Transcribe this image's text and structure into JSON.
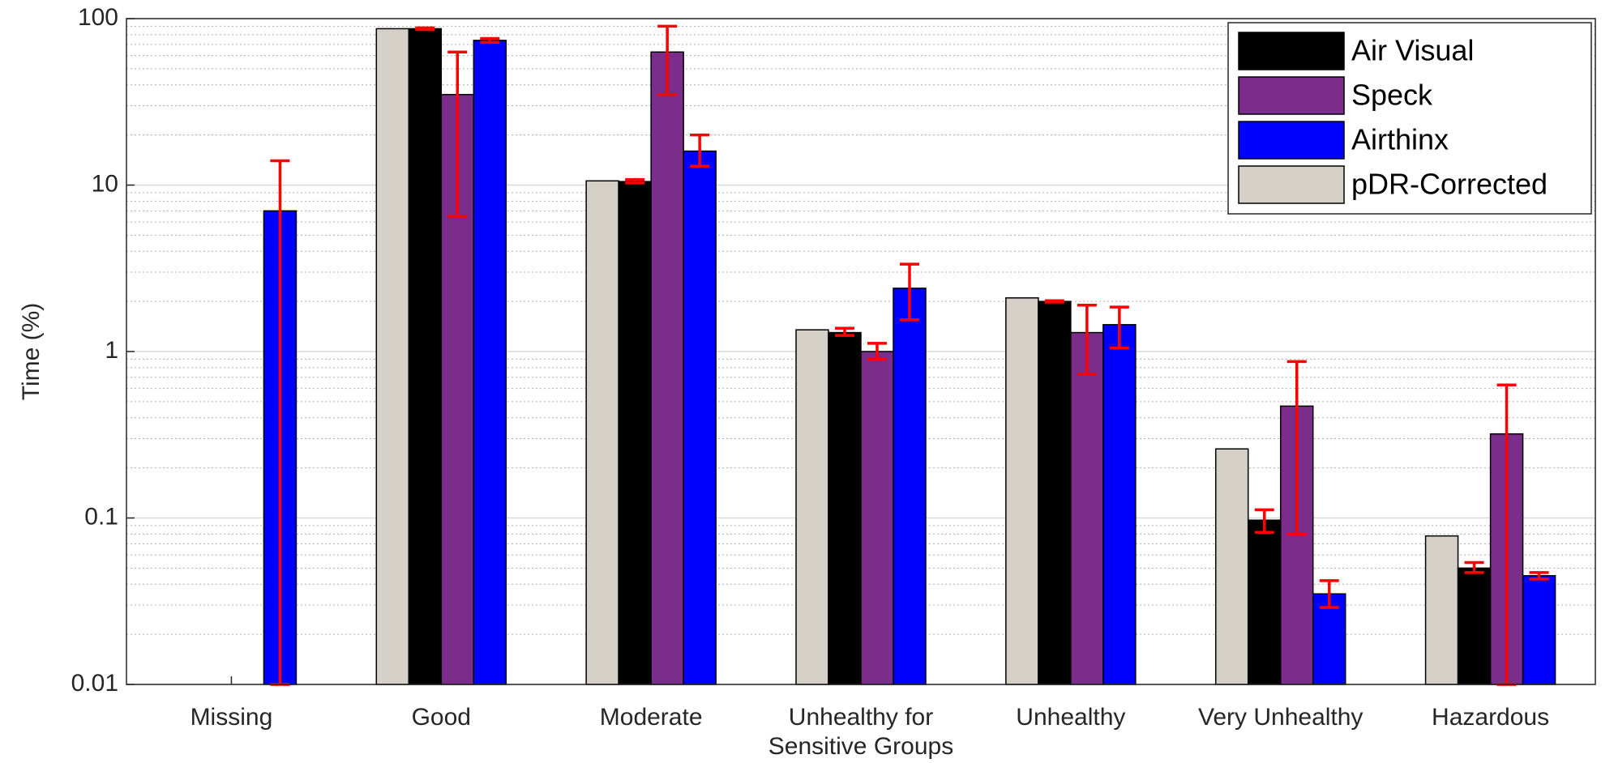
{
  "chart_data": {
    "type": "bar",
    "y_label": "Time (%)",
    "log_scale": true,
    "grid": true,
    "legend_position": "upper right",
    "categories": [
      "Missing",
      "Good",
      "Moderate",
      "Unhealthy for Sensitive Groups",
      "Unhealthy",
      "Very Unhealthy",
      "Hazardous"
    ],
    "ylim": [
      0.01,
      100
    ],
    "yticks": [
      0.01,
      0.1,
      1,
      10,
      100
    ],
    "error_color": "#ff0000",
    "series": [
      {
        "name": "pDR-Corrected",
        "color": "#d4d0c8",
        "values": [
          null,
          87,
          10.6,
          1.35,
          2.1,
          0.26,
          0.078
        ],
        "err_low": [
          null,
          null,
          null,
          null,
          null,
          null,
          null
        ],
        "err_high": [
          null,
          null,
          null,
          null,
          null,
          null,
          null
        ]
      },
      {
        "name": "Air Visual",
        "color": "#000000",
        "values": [
          null,
          87,
          10.5,
          1.3,
          2.0,
          0.097,
          0.05
        ],
        "err_low": [
          null,
          86,
          10.3,
          1.25,
          1.98,
          0.082,
          0.047
        ],
        "err_high": [
          null,
          88,
          10.8,
          1.38,
          2.02,
          0.112,
          0.054
        ]
      },
      {
        "name": "Speck",
        "color": "#7b2d8b",
        "values": [
          null,
          35,
          63,
          1.0,
          1.3,
          0.47,
          0.32
        ],
        "err_low": [
          null,
          6.5,
          35,
          0.9,
          0.73,
          0.08,
          0.01
        ],
        "err_high": [
          null,
          63,
          90,
          1.12,
          1.9,
          0.87,
          0.63
        ]
      },
      {
        "name": "Airthinx",
        "color": "#0000ff",
        "values": [
          7,
          74,
          16,
          2.4,
          1.45,
          0.035,
          0.045
        ],
        "err_low": [
          0.01,
          72,
          13,
          1.55,
          1.05,
          0.029,
          0.043
        ],
        "err_high": [
          14,
          76,
          20,
          3.35,
          1.85,
          0.042,
          0.047
        ]
      }
    ],
    "legend_order": [
      1,
      2,
      3,
      0
    ]
  }
}
